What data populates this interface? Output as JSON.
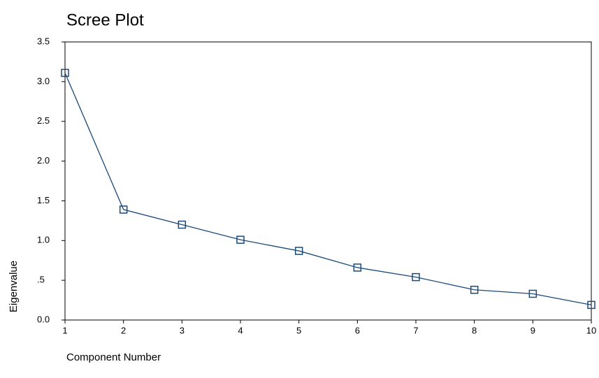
{
  "chart_data": {
    "type": "line",
    "title": "Scree Plot",
    "x_label": "Component Number",
    "y_label": "Eigenvalue",
    "x": [
      1,
      2,
      3,
      4,
      5,
      6,
      7,
      8,
      9,
      10
    ],
    "series": [
      {
        "name": "Eigenvalue",
        "color": "#1a4a7a",
        "values": [
          3.11,
          1.39,
          1.2,
          1.01,
          0.87,
          0.66,
          0.54,
          0.38,
          0.33,
          0.19
        ]
      }
    ],
    "xlim": [
      1,
      10
    ],
    "xticks": [
      1,
      2,
      3,
      4,
      5,
      6,
      7,
      8,
      9,
      10
    ],
    "ylim": [
      0,
      3.5
    ],
    "yticks": [
      {
        "value": 0,
        "label": "0.0"
      },
      {
        "value": 0.5,
        "label": ".5"
      },
      {
        "value": 1,
        "label": "1.0"
      },
      1.5,
      {
        "value": 2,
        "label": "2.0"
      },
      2.5,
      {
        "value": 3,
        "label": "3.0"
      },
      3.5
    ]
  }
}
